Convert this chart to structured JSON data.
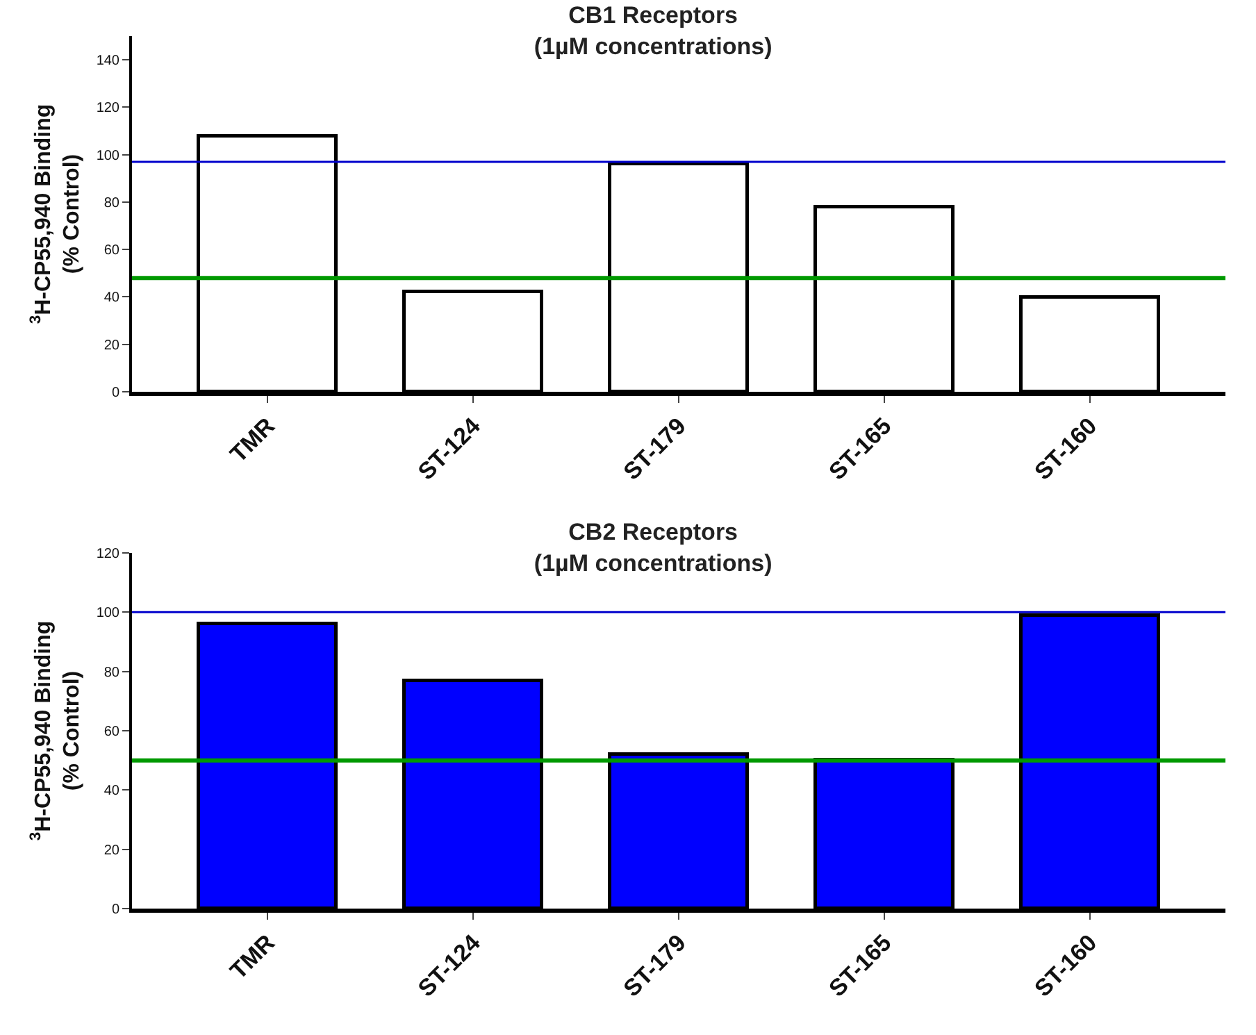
{
  "chart_data": [
    {
      "type": "bar",
      "title": "CB1 Receptors\n(1µM concentrations)",
      "ylabel": "$^{3}$H-CP55,940 Binding\n(% Control)",
      "categories": [
        "TMR",
        "ST-124",
        "ST-179",
        "ST-165",
        "ST-160"
      ],
      "values": [
        108,
        42,
        96,
        78,
        40
      ],
      "color": "#ffffff",
      "ylim": [
        0,
        150
      ],
      "yticks": [
        0,
        20,
        40,
        60,
        80,
        100,
        120,
        140
      ],
      "grid": false,
      "legend": false,
      "ref_lines": [
        {
          "axis": "y",
          "value": 97,
          "color": "#0000cc"
        },
        {
          "axis": "y",
          "value": 48,
          "color": "#009900"
        }
      ]
    },
    {
      "type": "bar",
      "title": "CB2 Receptors\n(1µM concentrations)",
      "ylabel": "$^{3}$H-CP55,940 Binding\n(% Control)",
      "categories": [
        "TMR",
        "ST-124",
        "ST-179",
        "ST-165",
        "ST-160"
      ],
      "values": [
        96,
        77,
        52,
        50,
        99
      ],
      "color": "#0000ff",
      "ylim": [
        0,
        120
      ],
      "yticks": [
        0,
        20,
        40,
        60,
        80,
        100,
        120
      ],
      "grid": false,
      "legend": false,
      "ref_lines": [
        {
          "axis": "y",
          "value": 100,
          "color": "#0000cc"
        },
        {
          "axis": "y",
          "value": 50,
          "color": "#009900"
        }
      ]
    }
  ]
}
